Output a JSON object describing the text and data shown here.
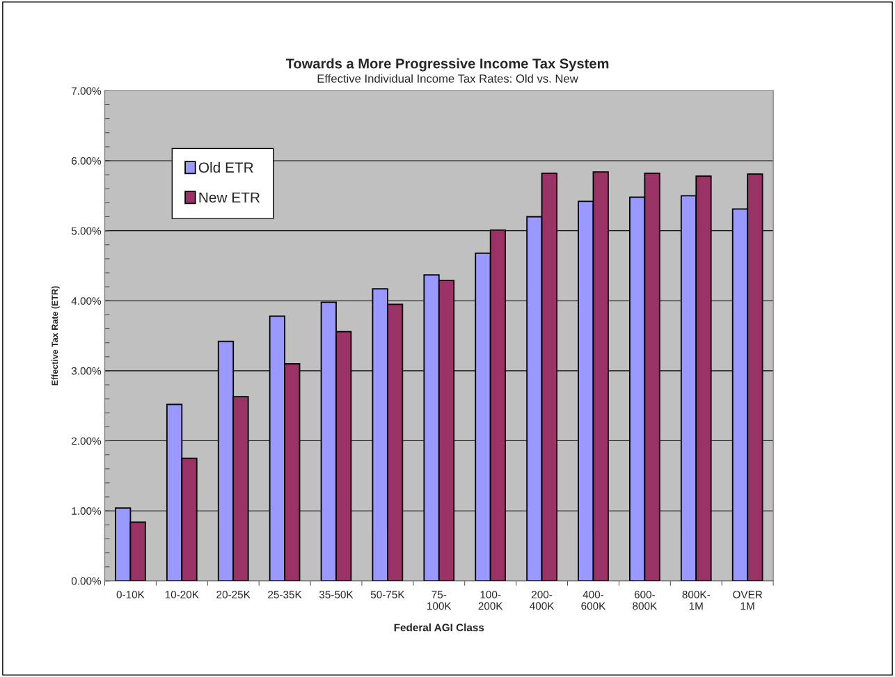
{
  "chart_data": {
    "type": "bar",
    "title": "Towards a More Progressive Income Tax System",
    "subtitle": "Effective Individual Income Tax Rates: Old vs. New",
    "xlabel": "Federal AGI Class",
    "ylabel": "Effective Tax Rate (ETR)",
    "categories": [
      "0-10K",
      "10-20K",
      "20-25K",
      "25-35K",
      "35-50K",
      "50-75K",
      "75-\n100K",
      "100-\n200K",
      "200-\n400K",
      "400-\n600K",
      "600-\n800K",
      "800K-\n1M",
      "OVER\n1M"
    ],
    "series": [
      {
        "name": "Old ETR",
        "color": "#9999ff",
        "values": [
          1.04,
          2.52,
          3.42,
          3.78,
          3.98,
          4.17,
          4.37,
          4.68,
          5.2,
          5.42,
          5.48,
          5.5,
          5.31
        ]
      },
      {
        "name": "New ETR",
        "color": "#993366",
        "values": [
          0.84,
          1.75,
          2.63,
          3.1,
          3.56,
          3.95,
          4.29,
          5.01,
          5.82,
          5.84,
          5.82,
          5.78,
          5.81
        ]
      }
    ],
    "ylim": [
      0,
      7
    ],
    "yticks": [
      {
        "value": 0,
        "label": "0.00%"
      },
      {
        "value": 1,
        "label": "1.00%"
      },
      {
        "value": 2,
        "label": "2.00%"
      },
      {
        "value": 3,
        "label": "3.00%"
      },
      {
        "value": 4,
        "label": "4.00%"
      },
      {
        "value": 5,
        "label": "5.00%"
      },
      {
        "value": 6,
        "label": "6.00%"
      },
      {
        "value": 7,
        "label": "7.00%"
      }
    ],
    "grid": "y",
    "legend": "top left"
  }
}
